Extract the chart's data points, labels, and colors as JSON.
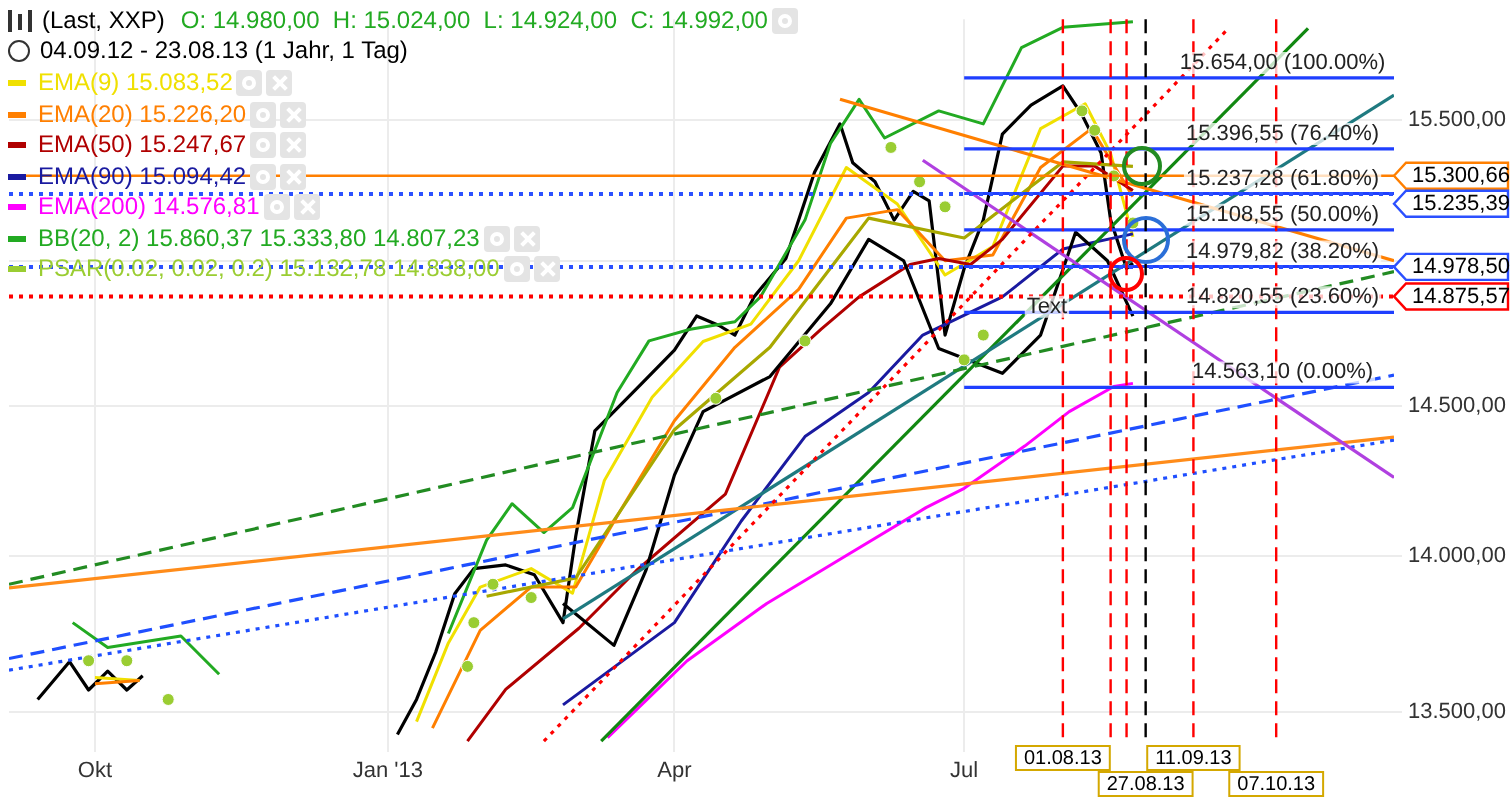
{
  "chart_data": {
    "type": "line",
    "title": "(Last, XXP)",
    "subtitle": "04.09.12 - 23.08.13 (1 Jahr, 1 Tag)",
    "annotations": [
      "O: 14.980,00  H: 15.024,00  L: 14.924,00  C: 14.992,00",
      {
        "text": "Text",
        "x": "2013-07-27",
        "y": 14788
      },
      {
        "text": "15.654,00 (100.00%)",
        "x": "2013-10-09",
        "y": 15654
      },
      {
        "text": "15.396,55 (76.40%)",
        "x": "2013-10-09",
        "y": 15396.55
      },
      {
        "text": "15.237,28 (61.80%)",
        "x": "2013-10-09",
        "y": 15237.28
      },
      {
        "text": "15.108,55 (50.00%)",
        "x": "2013-10-09",
        "y": 15108.55
      },
      {
        "text": "14.979,82 (38.20%)",
        "x": "2013-10-09",
        "y": 14979.82
      },
      {
        "text": "14.820,55 (23.60%)",
        "x": "2013-10-09",
        "y": 14820.55
      },
      {
        "text": "14.563,10 (0.00%)",
        "x": "2013-10-09",
        "y": 14563.1
      }
    ],
    "log": true,
    "grid": true,
    "legend": "top left",
    "xlim": [
      "2012-09-04",
      "2013-11-13"
    ],
    "xticks": [
      {
        "value": "2012-10-01",
        "label": "Okt"
      },
      {
        "value": "2013-01-01",
        "label": "Jan '13"
      },
      {
        "value": "2013-04-01",
        "label": "Apr"
      },
      {
        "value": "2013-07-01",
        "label": "Jul"
      }
    ],
    "ylim": [
      13400,
      15870
    ],
    "yticks": [
      {
        "value": 13500,
        "label": "13.500,00"
      },
      {
        "value": 14000,
        "label": "14.000,00"
      },
      {
        "value": 14500,
        "label": "14.500,00"
      },
      {
        "value": 15000,
        "label": null
      },
      {
        "value": 15500,
        "label": "15.500,00"
      }
    ],
    "ref_lines": [
      {
        "axis": "y",
        "value": 15300.66,
        "label": "15.300,66",
        "color": "#ff7f00",
        "line_style": "solid"
      },
      {
        "axis": "y",
        "value": 15235.39,
        "label": "15.235,39",
        "color": "#2b50ff",
        "line_style": "dotted"
      },
      {
        "axis": "y",
        "value": 14978.5,
        "label": "14.978,50",
        "color": "#2b50ff",
        "line_style": "dotted"
      },
      {
        "axis": "y",
        "value": 14875.57,
        "label": "14.875,57",
        "color": "#ff0000",
        "line_style": "dotted"
      },
      {
        "axis": "x",
        "value": "2013-08-01",
        "label": "01.08.13",
        "color": "#ff0000",
        "line_style": "dashed"
      },
      {
        "axis": "x",
        "value": "2013-08-16",
        "color": "#ff0000",
        "line_style": "dashed"
      },
      {
        "axis": "x",
        "value": "2013-08-21",
        "color": "#ff0000",
        "line_style": "dashed"
      },
      {
        "axis": "x",
        "value": "2013-08-27",
        "label": "27.08.13",
        "color": "#000000",
        "line_style": "dashed"
      },
      {
        "axis": "x",
        "value": "2013-09-11",
        "label": "11.09.13",
        "color": "#ff0000",
        "line_style": "dashed"
      },
      {
        "axis": "x",
        "value": "2013-10-07",
        "label": "07.10.13",
        "color": "#ff0000",
        "line_style": "dashed"
      }
    ],
    "series": [
      {
        "color": "#000000",
        "x": [
          "2012-09-13",
          "2012-09-23",
          "2012-09-29",
          "2012-10-05",
          "2012-10-11",
          "2012-10-16",
          "2012-11-15",
          "2013-01-04",
          "2013-01-10",
          "2013-01-16",
          "2013-01-22",
          "2013-01-28",
          "2013-02-07",
          "2013-02-16",
          "2013-02-25",
          "2013-03-01",
          "2013-03-07",
          "2013-03-13",
          "2013-03-22",
          "2013-04-01",
          "2013-04-08",
          "2013-04-15",
          "2013-04-20",
          "2013-04-26",
          "2013-05-06",
          "2013-05-15",
          "2013-05-23",
          "2013-05-27",
          "2013-06-03",
          "2013-06-09",
          "2013-06-15",
          "2013-06-20",
          "2013-06-25",
          "2013-07-01",
          "2013-07-07",
          "2013-07-13",
          "2013-07-22",
          "2013-08-01",
          "2013-08-07",
          "2013-08-13",
          "2013-08-16",
          "2013-08-21",
          "2013-08-23"
        ],
        "values": [
          13540,
          13660,
          13570,
          13630,
          13570,
          13615,
          null,
          13430,
          13540,
          13690,
          13878,
          13960,
          13972,
          13940,
          13785,
          14066,
          14416,
          14481,
          14579,
          14690,
          14808,
          14775,
          14742,
          14874,
          15008,
          15313,
          15487,
          15347,
          15279,
          15143,
          15245,
          15211,
          14742,
          14973,
          15143,
          15450,
          15555,
          15625,
          15520,
          15382,
          15143,
          14973,
          14992
        ]
      },
      {
        "name": "EMA(9) 15.083,52",
        "color": "#f0e000",
        "x": [
          "2012-10-01",
          "2012-10-15",
          "2012-11-30",
          "2013-01-10",
          "2013-01-20",
          "2013-01-30",
          "2013-02-15",
          "2013-02-28",
          "2013-03-10",
          "2013-03-25",
          "2013-04-10",
          "2013-04-25",
          "2013-05-10",
          "2013-05-25",
          "2013-06-10",
          "2013-06-25",
          "2013-07-10",
          "2013-07-25",
          "2013-08-08",
          "2013-08-16",
          "2013-08-23"
        ],
        "values": [
          13610,
          13600,
          null,
          13470,
          13720,
          13900,
          13960,
          13880,
          14250,
          14530,
          14720,
          14780,
          15000,
          15330,
          15200,
          14950,
          15050,
          15470,
          15560,
          15380,
          15083.52
        ]
      },
      {
        "name": "EMA(20) 15.226,20",
        "color": "#ff7f00",
        "x": [
          "2012-10-01",
          "2012-10-15",
          "2012-11-30",
          "2013-01-15",
          "2013-01-30",
          "2013-02-15",
          "2013-03-01",
          "2013-03-15",
          "2013-04-01",
          "2013-04-20",
          "2013-05-10",
          "2013-05-25",
          "2013-06-10",
          "2013-06-25",
          "2013-07-10",
          "2013-07-25",
          "2013-08-10",
          "2013-08-23"
        ],
        "values": [
          13590,
          13600,
          null,
          13450,
          13760,
          13900,
          13900,
          14150,
          14450,
          14700,
          14900,
          15150,
          15180,
          15000,
          15020,
          15330,
          15470,
          15226.2
        ]
      },
      {
        "name": "EMA(50) 15.247,67",
        "color": "#b00000",
        "x": [
          "2013-01-26",
          "2013-02-07",
          "2013-03-02",
          "2013-03-20",
          "2013-04-17",
          "2013-05-04",
          "2013-05-17",
          "2013-05-29",
          "2013-06-14",
          "2013-06-23",
          "2013-07-03",
          "2013-07-13",
          "2013-08-01",
          "2013-08-11",
          "2013-08-23"
        ],
        "values": [
          13409,
          13572,
          13767,
          13953,
          14205,
          14632,
          14762,
          14874,
          14987,
          15008,
          14987,
          15075,
          15335,
          15335,
          15247.67
        ]
      },
      {
        "name": "EMA(90) 15.094,42",
        "color": "#1a1aa0",
        "x": [
          "2013-02-25",
          "2013-04-01",
          "2013-04-22",
          "2013-05-12",
          "2013-06-01",
          "2013-06-18",
          "2013-07-13",
          "2013-08-01",
          "2013-08-23"
        ],
        "values": [
          13523,
          13785,
          14116,
          14397,
          14546,
          14742,
          14874,
          15041,
          15094.42
        ]
      },
      {
        "name": "EMA(200) 14.576,81",
        "color": "#ff00ff",
        "x": [
          "2013-03-11",
          "2013-04-05",
          "2013-04-30",
          "2013-05-25",
          "2013-06-19",
          "2013-07-01",
          "2013-07-20",
          "2013-08-03",
          "2013-08-17",
          "2013-08-23"
        ],
        "values": [
          13420,
          13663,
          13847,
          14003,
          14160,
          14224,
          14365,
          14481,
          14566,
          14576.81
        ]
      },
      {
        "name": "BB(20, 2) 15.860,37 15.333,80 14.807,23",
        "color": "#22aa22",
        "x": [
          "2012-09-24",
          "2012-10-05",
          "2012-10-28",
          "2012-11-09",
          "2012-12-01",
          "2013-01-20",
          "2013-02-01",
          "2013-02-09",
          "2013-02-19",
          "2013-02-28",
          "2013-03-14",
          "2013-03-24",
          "2013-04-06",
          "2013-04-20",
          "2013-04-28",
          "2013-05-12",
          "2013-05-20",
          "2013-05-29",
          "2013-06-06",
          "2013-06-23",
          "2013-07-07",
          "2013-07-19",
          "2013-08-01",
          "2013-08-23"
        ],
        "values": [
          13785,
          13705,
          13742,
          13620,
          null,
          13750,
          14053,
          14173,
          14078,
          14160,
          14546,
          14722,
          14762,
          14788,
          14874,
          15143,
          15416,
          15576,
          15436,
          15534,
          15487,
          15765,
          15840,
          15860.37
        ]
      },
      {
        "color": "#a8a800",
        "x": [
          "2013-02-01",
          "2013-03-01",
          "2013-04-01",
          "2013-05-01",
          "2013-06-01",
          "2013-07-01",
          "2013-08-01",
          "2013-08-23"
        ],
        "values": [
          13870,
          13930,
          14420,
          14700,
          15150,
          15080,
          15350,
          15333.8
        ]
      },
      {
        "color": "#000000",
        "x": [
          "2013-02-25",
          "2013-03-13",
          "2013-03-23",
          "2013-04-01",
          "2013-04-10",
          "2013-05-01",
          "2013-05-20",
          "2013-06-01",
          "2013-06-12",
          "2013-06-23",
          "2013-07-13",
          "2013-07-25",
          "2013-08-05",
          "2013-08-15",
          "2013-08-23"
        ],
        "values": [
          13847,
          13712,
          13953,
          14268,
          14481,
          14600,
          14850,
          15075,
          15000,
          14696,
          14611,
          14742,
          15100,
          15000,
          14807.23
        ]
      },
      {
        "type": "scatter",
        "name": "PSAR(0.02, 0.02, 0.2) 15.132,78 14.838,00",
        "color": "#9acd32",
        "x": [
          "2012-09-29",
          "2012-10-11",
          "2012-10-24",
          "2013-01-26",
          "2013-01-28",
          "2013-02-03",
          "2013-02-15",
          "2013-04-14",
          "2013-05-12",
          "2013-06-08",
          "2013-06-17",
          "2013-06-25",
          "2013-07-01",
          "2013-07-07",
          "2013-08-07",
          "2013-08-11",
          "2013-08-17",
          "2013-08-23"
        ],
        "values": [
          13663,
          13663,
          13540,
          13645,
          13785,
          13909,
          13866,
          14526,
          14722,
          15402,
          15279,
          15190,
          14657,
          14742,
          15534,
          15464,
          15300,
          15132.78
        ]
      },
      {
        "color": "#118811",
        "line_style": "solid",
        "x": [
          "2013-03-09",
          "2013-10-17"
        ],
        "values": [
          13409,
          15836
        ]
      },
      {
        "color": "#1f7a80",
        "line_style": "solid",
        "x": [
          "2013-02-25",
          "2013-11-13"
        ],
        "values": [
          13797,
          15591
        ]
      },
      {
        "color": "#228b22",
        "line_style": "dashed",
        "x": [
          "2012-09-04",
          "2013-11-13"
        ],
        "values": [
          13909,
          14962
        ]
      },
      {
        "color": "#1f4fff",
        "line_style": "dashed",
        "x": [
          "2012-09-04",
          "2013-11-13"
        ],
        "values": [
          13670,
          14605
        ]
      },
      {
        "color": "#1f4fff",
        "line_style": "dotted",
        "x": [
          "2012-09-04",
          "2013-11-13"
        ],
        "values": [
          13633,
          14385
        ]
      },
      {
        "color": "#ff8c1a",
        "line_style": "solid",
        "x": [
          "2012-09-04",
          "2013-11-13"
        ],
        "values": [
          13897,
          14395
        ]
      },
      {
        "color": "#ff7f00",
        "line_style": "solid",
        "x": [
          "2013-05-23",
          "2013-11-13"
        ],
        "values": [
          15576,
          15000
        ]
      },
      {
        "color": "#b040e0",
        "line_style": "solid",
        "x": [
          "2013-06-18",
          "2013-11-13"
        ],
        "values": [
          15356,
          14260
        ]
      },
      {
        "color": "#ff0000",
        "line_style": "dotted",
        "x": [
          "2013-02-19",
          "2013-09-22"
        ],
        "values": [
          13409,
          15836
        ]
      },
      {
        "color": "#1f3fff",
        "line_style": "solid",
        "x": [
          "2013-07-01",
          "2013-11-13"
        ],
        "values": [
          15654,
          15654
        ]
      },
      {
        "color": "#1f3fff",
        "line_style": "solid",
        "x": [
          "2013-07-01",
          "2013-11-13"
        ],
        "values": [
          15396.55,
          15396.55
        ]
      },
      {
        "color": "#1f3fff",
        "line_style": "solid",
        "x": [
          "2013-07-01",
          "2013-11-13"
        ],
        "values": [
          15237.28,
          15237.28
        ]
      },
      {
        "color": "#1f3fff",
        "line_style": "solid",
        "x": [
          "2013-07-01",
          "2013-11-13"
        ],
        "values": [
          15108.55,
          15108.55
        ]
      },
      {
        "color": "#1f3fff",
        "line_style": "solid",
        "x": [
          "2013-07-01",
          "2013-11-13"
        ],
        "values": [
          14979.82,
          14979.82
        ]
      },
      {
        "color": "#1f3fff",
        "line_style": "solid",
        "x": [
          "2013-07-01",
          "2013-11-13"
        ],
        "values": [
          14820.55,
          14820.55
        ]
      },
      {
        "color": "#1f3fff",
        "line_style": "solid",
        "x": [
          "2013-07-01",
          "2013-11-13"
        ],
        "values": [
          14563.1,
          14563.1
        ]
      }
    ]
  }
}
